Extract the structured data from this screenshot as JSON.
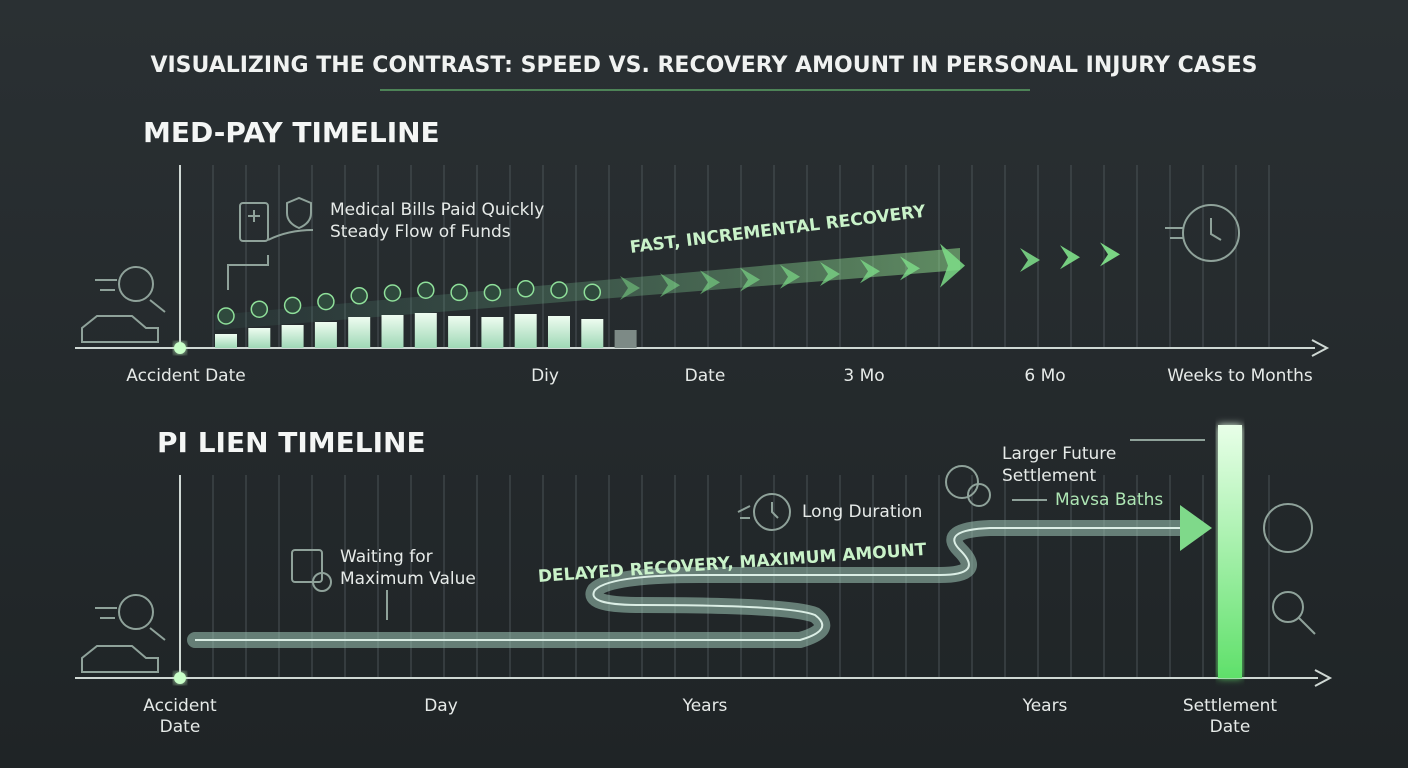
{
  "title": "VISUALIZING THE CONTRAST: SPEED VS. RECOVERY AMOUNT IN PERSONAL INJURY CASES",
  "medpay": {
    "heading": "MED-PAY TIMELINE",
    "note": [
      "Medical Bills Paid Quickly",
      "Steady Flow of Funds"
    ],
    "arrow_label": "FAST, INCREMENTAL RECOVERY",
    "axis_labels": [
      "Accident Date",
      "Diy",
      "Date",
      "3 Mo",
      "6 Mo",
      "Weeks to Months"
    ]
  },
  "pilien": {
    "heading": "PI LIEN TIMELINE",
    "waiting_note": [
      "Waiting for",
      "Maximum Value"
    ],
    "duration_note": "Long Duration",
    "settlement_note": [
      "Larger Future",
      "Settlement"
    ],
    "side_note": "Mavsa Baths",
    "path_label": "DELAYED RECOVERY, MAXIMUM AMOUNT",
    "axis_labels": [
      [
        "Accident",
        "Date"
      ],
      "Day",
      "Years",
      "Years",
      [
        "Settlement",
        "Date"
      ]
    ]
  }
}
